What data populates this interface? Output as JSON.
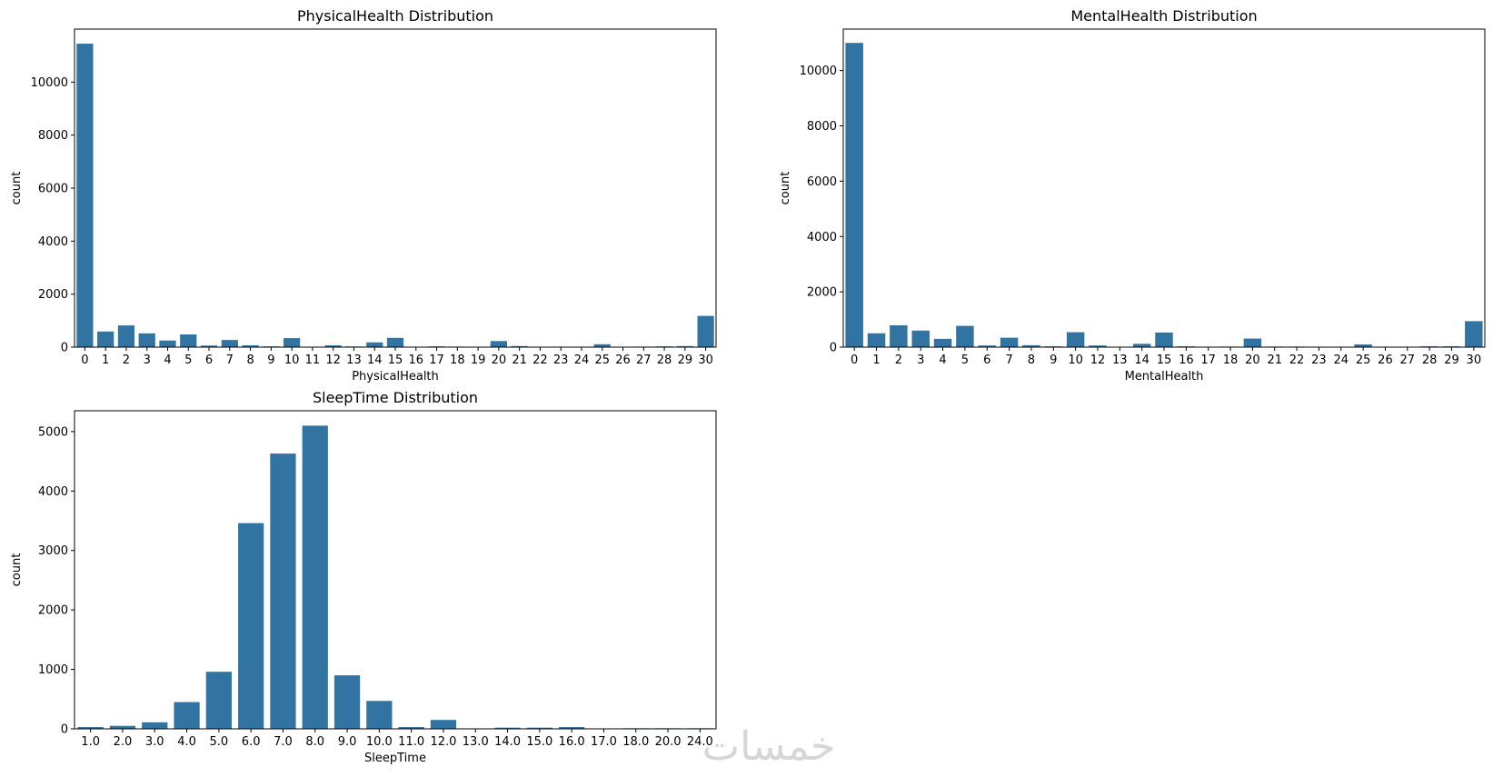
{
  "colors": {
    "bar": "#3274a1",
    "axis": "#000000",
    "watermark": "#cfcfcf"
  },
  "watermark": "خمسات",
  "chart_data": [
    {
      "type": "bar",
      "title": "PhysicalHealth Distribution",
      "xlabel": "PhysicalHealth",
      "ylabel": "count",
      "ylim": [
        0,
        12000
      ],
      "yticks": [
        0,
        2000,
        4000,
        6000,
        8000,
        10000
      ],
      "categories": [
        "0",
        "1",
        "2",
        "3",
        "4",
        "5",
        "6",
        "7",
        "8",
        "9",
        "10",
        "11",
        "12",
        "13",
        "14",
        "15",
        "16",
        "17",
        "18",
        "19",
        "20",
        "21",
        "22",
        "23",
        "24",
        "25",
        "26",
        "27",
        "28",
        "29",
        "30"
      ],
      "values": [
        11450,
        590,
        820,
        520,
        250,
        480,
        60,
        270,
        70,
        30,
        340,
        10,
        70,
        25,
        180,
        350,
        10,
        30,
        20,
        10,
        230,
        40,
        10,
        10,
        10,
        110,
        10,
        20,
        30,
        40,
        1180
      ]
    },
    {
      "type": "bar",
      "title": "MentalHealth Distribution",
      "xlabel": "MentalHealth",
      "ylabel": "count",
      "ylim": [
        0,
        11500
      ],
      "yticks": [
        0,
        2000,
        4000,
        6000,
        8000,
        10000
      ],
      "categories": [
        "0",
        "1",
        "2",
        "3",
        "4",
        "5",
        "6",
        "7",
        "8",
        "9",
        "10",
        "12",
        "13",
        "14",
        "15",
        "16",
        "17",
        "18",
        "20",
        "21",
        "22",
        "23",
        "24",
        "25",
        "26",
        "27",
        "28",
        "29",
        "30"
      ],
      "values": [
        11000,
        500,
        790,
        600,
        300,
        770,
        60,
        340,
        70,
        30,
        540,
        60,
        10,
        120,
        530,
        30,
        10,
        20,
        310,
        20,
        20,
        10,
        10,
        100,
        10,
        10,
        30,
        30,
        940
      ]
    },
    {
      "type": "bar",
      "title": "SleepTime Distribution",
      "xlabel": "SleepTime",
      "ylabel": "count",
      "ylim": [
        0,
        5350
      ],
      "yticks": [
        0,
        1000,
        2000,
        3000,
        4000,
        5000
      ],
      "categories": [
        "1.0",
        "2.0",
        "3.0",
        "4.0",
        "5.0",
        "6.0",
        "7.0",
        "8.0",
        "9.0",
        "10.0",
        "11.0",
        "12.0",
        "13.0",
        "14.0",
        "15.0",
        "16.0",
        "17.0",
        "18.0",
        "20.0",
        "24.0"
      ],
      "values": [
        30,
        50,
        110,
        450,
        960,
        3460,
        4630,
        5100,
        900,
        470,
        30,
        150,
        5,
        20,
        20,
        30,
        5,
        10,
        10,
        10
      ]
    }
  ]
}
